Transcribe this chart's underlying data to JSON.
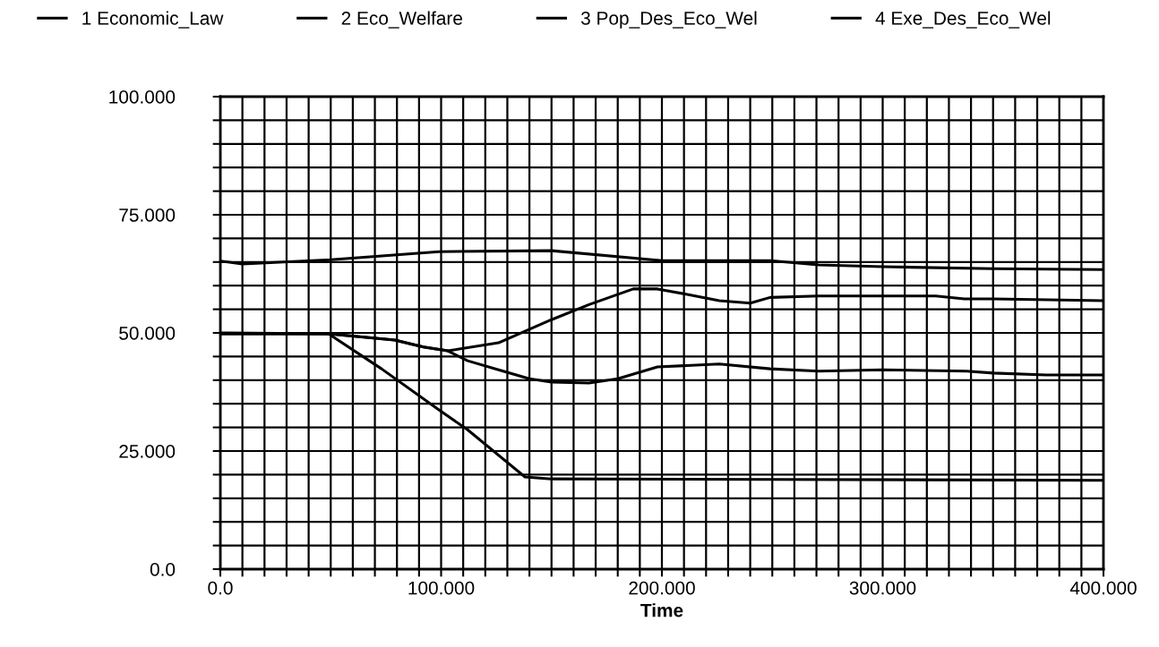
{
  "chart_data": {
    "type": "line",
    "xlabel": "Time",
    "legend": "top",
    "grid": true,
    "marker": "none",
    "line_style": "solid",
    "xlim": [
      0,
      400
    ],
    "ylim": [
      0,
      100
    ],
    "xticks": [
      {
        "value": 0,
        "label": "0.0"
      },
      {
        "value": 10,
        "label": null
      },
      {
        "value": 20,
        "label": null
      },
      {
        "value": 30,
        "label": null
      },
      {
        "value": 40,
        "label": null
      },
      {
        "value": 50,
        "label": null
      },
      {
        "value": 60,
        "label": null
      },
      {
        "value": 70,
        "label": null
      },
      {
        "value": 80,
        "label": null
      },
      {
        "value": 90,
        "label": null
      },
      {
        "value": 100,
        "label": "100.000"
      },
      {
        "value": 110,
        "label": null
      },
      {
        "value": 120,
        "label": null
      },
      {
        "value": 130,
        "label": null
      },
      {
        "value": 140,
        "label": null
      },
      {
        "value": 150,
        "label": null
      },
      {
        "value": 160,
        "label": null
      },
      {
        "value": 170,
        "label": null
      },
      {
        "value": 180,
        "label": null
      },
      {
        "value": 190,
        "label": null
      },
      {
        "value": 200,
        "label": "200.000"
      },
      {
        "value": 210,
        "label": null
      },
      {
        "value": 220,
        "label": null
      },
      {
        "value": 230,
        "label": null
      },
      {
        "value": 240,
        "label": null
      },
      {
        "value": 250,
        "label": null
      },
      {
        "value": 260,
        "label": null
      },
      {
        "value": 270,
        "label": null
      },
      {
        "value": 280,
        "label": null
      },
      {
        "value": 290,
        "label": null
      },
      {
        "value": 300,
        "label": "300.000"
      },
      {
        "value": 310,
        "label": null
      },
      {
        "value": 320,
        "label": null
      },
      {
        "value": 330,
        "label": null
      },
      {
        "value": 340,
        "label": null
      },
      {
        "value": 350,
        "label": null
      },
      {
        "value": 360,
        "label": null
      },
      {
        "value": 370,
        "label": null
      },
      {
        "value": 380,
        "label": null
      },
      {
        "value": 390,
        "label": null
      },
      {
        "value": 400,
        "label": "400.000"
      }
    ],
    "yticks": [
      {
        "value": 0,
        "label": "0.0"
      },
      {
        "value": 5,
        "label": null
      },
      {
        "value": 10,
        "label": null
      },
      {
        "value": 15,
        "label": null
      },
      {
        "value": 20,
        "label": null
      },
      {
        "value": 25,
        "label": "25.000"
      },
      {
        "value": 30,
        "label": null
      },
      {
        "value": 35,
        "label": null
      },
      {
        "value": 40,
        "label": null
      },
      {
        "value": 45,
        "label": null
      },
      {
        "value": 50,
        "label": "50.000"
      },
      {
        "value": 55,
        "label": null
      },
      {
        "value": 60,
        "label": null
      },
      {
        "value": 65,
        "label": null
      },
      {
        "value": 70,
        "label": null
      },
      {
        "value": 75,
        "label": "75.000"
      },
      {
        "value": 80,
        "label": null
      },
      {
        "value": 85,
        "label": null
      },
      {
        "value": 90,
        "label": null
      },
      {
        "value": 95,
        "label": null
      },
      {
        "value": 100,
        "label": "100.000"
      }
    ],
    "series": [
      {
        "name": "1 Economic_Law",
        "color": "#000000",
        "x": [
          0,
          49,
          79,
          92,
          103,
          126,
          150,
          167,
          187,
          198,
          212,
          226,
          240,
          249,
          271,
          300,
          324,
          337,
          350,
          400
        ],
        "values": [
          49.8,
          49.8,
          48.5,
          47,
          46.2,
          47.9,
          52.8,
          56,
          59.3,
          59.3,
          58.1,
          56.8,
          56.3,
          57.5,
          57.8,
          57.8,
          57.8,
          57.2,
          57.2,
          56.8
        ]
      },
      {
        "name": "2 Eco_Welfare",
        "color": "#000000",
        "x": [
          0,
          49,
          79,
          92,
          103,
          112,
          126,
          140,
          150,
          167,
          180,
          198,
          226,
          249,
          271,
          300,
          338,
          350,
          374,
          400
        ],
        "values": [
          49.8,
          49.8,
          48.5,
          47,
          46.2,
          44.1,
          42.2,
          40.3,
          39.6,
          39.4,
          40.3,
          42.8,
          43.4,
          42.4,
          41.9,
          42.2,
          41.9,
          41.5,
          41.1,
          41.1
        ]
      },
      {
        "name": "3 Pop_Des_Eco_Wel",
        "color": "#000000",
        "x": [
          0,
          10,
          50,
          99,
          150,
          200,
          249,
          271,
          300,
          350,
          400
        ],
        "values": [
          65.2,
          64.6,
          65.5,
          67.2,
          67.4,
          65.3,
          65.3,
          64.4,
          64,
          63.6,
          63.4
        ]
      },
      {
        "name": "4 Exe_Des_Eco_Wel",
        "color": "#000000",
        "x": [
          0,
          49,
          73,
          99,
          112,
          138,
          150,
          250,
          400
        ],
        "values": [
          50,
          49.8,
          42.4,
          33.7,
          29.5,
          19.5,
          19.1,
          19,
          18.8
        ]
      }
    ]
  }
}
